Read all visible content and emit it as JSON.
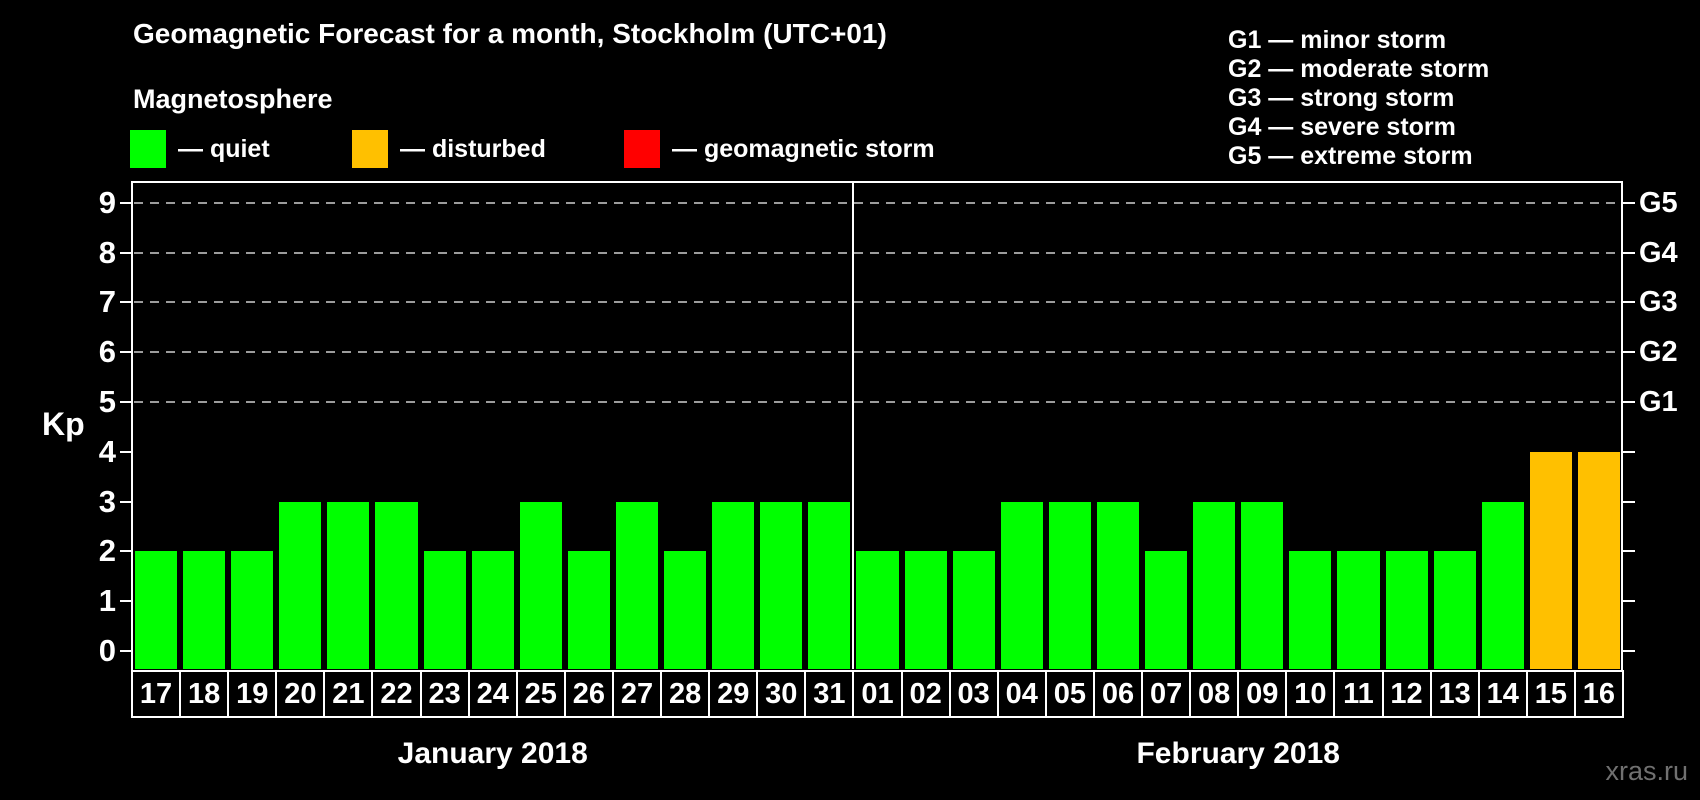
{
  "title": "Geomagnetic Forecast for a month, Stockholm (UTC+01)",
  "subtitle": "Magnetosphere",
  "legend": [
    {
      "key": "quiet",
      "label": "— quiet",
      "color": "#00FF00"
    },
    {
      "key": "disturbed",
      "label": "— disturbed",
      "color": "#FFC000"
    },
    {
      "key": "storm",
      "label": "— geomagnetic storm",
      "color": "#FF0000"
    }
  ],
  "g_legend": {
    "lines": [
      "G1 — minor storm",
      "G2 — moderate storm",
      "G3 — strong storm",
      "G4 — severe storm",
      "G5 — extreme storm"
    ]
  },
  "watermark": "xras.ru",
  "chart_data": {
    "type": "bar",
    "title": "Geomagnetic Forecast for a month, Stockholm (UTC+01)",
    "ylabel": "Kp",
    "ylim": [
      0,
      9
    ],
    "yticks": [
      0,
      1,
      2,
      3,
      4,
      5,
      6,
      7,
      8,
      9
    ],
    "grid_on_kp": [
      5,
      6,
      7,
      8,
      9
    ],
    "right_axis_labels": [
      {
        "kp": 5,
        "label": "G1"
      },
      {
        "kp": 6,
        "label": "G2"
      },
      {
        "kp": 7,
        "label": "G3"
      },
      {
        "kp": 8,
        "label": "G4"
      },
      {
        "kp": 9,
        "label": "G5"
      }
    ],
    "status_colors": {
      "quiet": "#00FF00",
      "disturbed": "#FFC000",
      "storm": "#FF0000"
    },
    "months": [
      {
        "label": "January 2018",
        "days": [
          {
            "day": "17",
            "kp": 2,
            "status": "quiet"
          },
          {
            "day": "18",
            "kp": 2,
            "status": "quiet"
          },
          {
            "day": "19",
            "kp": 2,
            "status": "quiet"
          },
          {
            "day": "20",
            "kp": 3,
            "status": "quiet"
          },
          {
            "day": "21",
            "kp": 3,
            "status": "quiet"
          },
          {
            "day": "22",
            "kp": 3,
            "status": "quiet"
          },
          {
            "day": "23",
            "kp": 2,
            "status": "quiet"
          },
          {
            "day": "24",
            "kp": 2,
            "status": "quiet"
          },
          {
            "day": "25",
            "kp": 3,
            "status": "quiet"
          },
          {
            "day": "26",
            "kp": 2,
            "status": "quiet"
          },
          {
            "day": "27",
            "kp": 3,
            "status": "quiet"
          },
          {
            "day": "28",
            "kp": 2,
            "status": "quiet"
          },
          {
            "day": "29",
            "kp": 3,
            "status": "quiet"
          },
          {
            "day": "30",
            "kp": 3,
            "status": "quiet"
          },
          {
            "day": "31",
            "kp": 3,
            "status": "quiet"
          }
        ]
      },
      {
        "label": "February 2018",
        "days": [
          {
            "day": "01",
            "kp": 2,
            "status": "quiet"
          },
          {
            "day": "02",
            "kp": 2,
            "status": "quiet"
          },
          {
            "day": "03",
            "kp": 2,
            "status": "quiet"
          },
          {
            "day": "04",
            "kp": 3,
            "status": "quiet"
          },
          {
            "day": "05",
            "kp": 3,
            "status": "quiet"
          },
          {
            "day": "06",
            "kp": 3,
            "status": "quiet"
          },
          {
            "day": "07",
            "kp": 2,
            "status": "quiet"
          },
          {
            "day": "08",
            "kp": 3,
            "status": "quiet"
          },
          {
            "day": "09",
            "kp": 3,
            "status": "quiet"
          },
          {
            "day": "10",
            "kp": 2,
            "status": "quiet"
          },
          {
            "day": "11",
            "kp": 2,
            "status": "quiet"
          },
          {
            "day": "12",
            "kp": 2,
            "status": "quiet"
          },
          {
            "day": "13",
            "kp": 2,
            "status": "quiet"
          },
          {
            "day": "14",
            "kp": 3,
            "status": "quiet"
          },
          {
            "day": "15",
            "kp": 4,
            "status": "disturbed"
          },
          {
            "day": "16",
            "kp": 4,
            "status": "disturbed"
          }
        ]
      }
    ]
  }
}
